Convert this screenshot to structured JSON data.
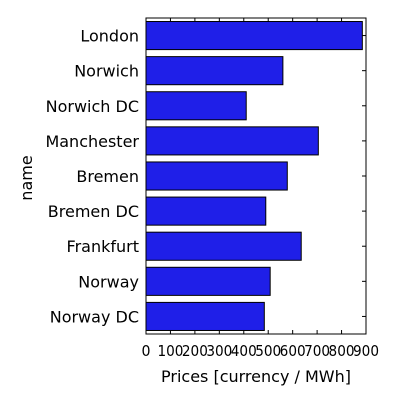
{
  "chart_data": {
    "type": "bar",
    "orientation": "horizontal",
    "categories": [
      "London",
      "Norwich",
      "Norwich DC",
      "Manchester",
      "Bremen",
      "Bremen DC",
      "Frankfurt",
      "Norway",
      "Norway DC"
    ],
    "values": [
      885,
      560,
      410,
      705,
      578,
      490,
      635,
      508,
      484
    ],
    "xlabel": "Prices [currency / MWh]",
    "ylabel": "name",
    "xlim": [
      0,
      900
    ],
    "xticks": [
      0,
      100,
      200,
      300,
      400,
      500,
      600,
      700,
      800,
      900
    ],
    "grid": false,
    "bar_color": "#1f1fe8",
    "bar_edge_color": "#000000"
  }
}
